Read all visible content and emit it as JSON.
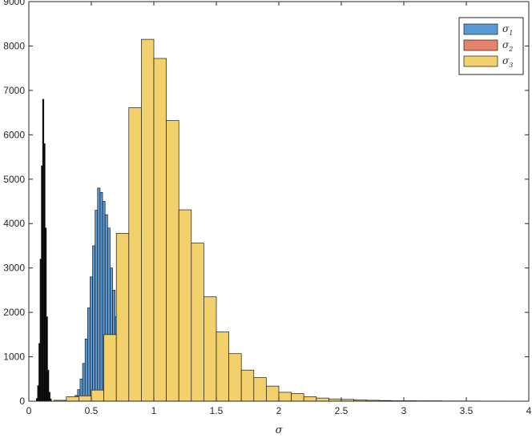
{
  "chart_data": {
    "type": "bar",
    "title": "",
    "xlabel": "σ",
    "ylabel": "",
    "xlim": [
      0,
      4
    ],
    "ylim": [
      0,
      9000
    ],
    "grid": false,
    "legend_position": "top-right",
    "xticks": [
      "0",
      "0.5",
      "1",
      "1.5",
      "2",
      "2.5",
      "3",
      "3.5",
      "4"
    ],
    "yticks": [
      "0",
      "1000",
      "2000",
      "3000",
      "4000",
      "5000",
      "6000",
      "7000",
      "8000",
      "9000"
    ],
    "series": [
      {
        "name": "σ",
        "subscript": "1",
        "color": "#5b9bd5",
        "bins": [
          {
            "x0": 0.33,
            "x1": 0.35,
            "count": 20
          },
          {
            "x0": 0.35,
            "x1": 0.37,
            "count": 60
          },
          {
            "x0": 0.37,
            "x1": 0.39,
            "count": 130
          },
          {
            "x0": 0.39,
            "x1": 0.41,
            "count": 260
          },
          {
            "x0": 0.41,
            "x1": 0.43,
            "count": 500
          },
          {
            "x0": 0.43,
            "x1": 0.45,
            "count": 850
          },
          {
            "x0": 0.45,
            "x1": 0.47,
            "count": 1400
          },
          {
            "x0": 0.47,
            "x1": 0.49,
            "count": 2100
          },
          {
            "x0": 0.49,
            "x1": 0.51,
            "count": 2800
          },
          {
            "x0": 0.51,
            "x1": 0.53,
            "count": 3500
          },
          {
            "x0": 0.53,
            "x1": 0.55,
            "count": 4300
          },
          {
            "x0": 0.55,
            "x1": 0.57,
            "count": 4800
          },
          {
            "x0": 0.57,
            "x1": 0.59,
            "count": 4700
          },
          {
            "x0": 0.59,
            "x1": 0.61,
            "count": 4500
          },
          {
            "x0": 0.61,
            "x1": 0.63,
            "count": 4200
          },
          {
            "x0": 0.63,
            "x1": 0.65,
            "count": 3900
          },
          {
            "x0": 0.65,
            "x1": 0.67,
            "count": 3000
          },
          {
            "x0": 0.67,
            "x1": 0.69,
            "count": 2500
          },
          {
            "x0": 0.69,
            "x1": 0.71,
            "count": 1900
          },
          {
            "x0": 0.71,
            "x1": 0.73,
            "count": 1500
          },
          {
            "x0": 0.73,
            "x1": 0.75,
            "count": 1200
          },
          {
            "x0": 0.75,
            "x1": 0.77,
            "count": 800
          }
        ]
      },
      {
        "name": "σ",
        "subscript": "2",
        "color": "#000000",
        "legend_color": "#e8836b",
        "bins": [
          {
            "x0": 0.06,
            "x1": 0.07,
            "count": 60
          },
          {
            "x0": 0.07,
            "x1": 0.08,
            "count": 350
          },
          {
            "x0": 0.08,
            "x1": 0.09,
            "count": 1300
          },
          {
            "x0": 0.09,
            "x1": 0.1,
            "count": 3200
          },
          {
            "x0": 0.1,
            "x1": 0.11,
            "count": 5300
          },
          {
            "x0": 0.11,
            "x1": 0.12,
            "count": 6800
          },
          {
            "x0": 0.12,
            "x1": 0.13,
            "count": 5800
          },
          {
            "x0": 0.13,
            "x1": 0.14,
            "count": 3900
          },
          {
            "x0": 0.14,
            "x1": 0.15,
            "count": 1900
          },
          {
            "x0": 0.15,
            "x1": 0.16,
            "count": 700
          },
          {
            "x0": 0.16,
            "x1": 0.17,
            "count": 200
          },
          {
            "x0": 0.17,
            "x1": 0.18,
            "count": 50
          }
        ]
      },
      {
        "name": "σ",
        "subscript": "3",
        "color": "#f2d06b",
        "bins": [
          {
            "x0": 0.2,
            "x1": 0.3,
            "count": 20
          },
          {
            "x0": 0.3,
            "x1": 0.4,
            "count": 100
          },
          {
            "x0": 0.4,
            "x1": 0.5,
            "count": 120
          },
          {
            "x0": 0.5,
            "x1": 0.6,
            "count": 250
          },
          {
            "x0": 0.6,
            "x1": 0.7,
            "count": 1500
          },
          {
            "x0": 0.7,
            "x1": 0.8,
            "count": 3780
          },
          {
            "x0": 0.8,
            "x1": 0.9,
            "count": 6610
          },
          {
            "x0": 0.9,
            "x1": 1.0,
            "count": 8150
          },
          {
            "x0": 1.0,
            "x1": 1.1,
            "count": 7720
          },
          {
            "x0": 1.1,
            "x1": 1.2,
            "count": 6320
          },
          {
            "x0": 1.2,
            "x1": 1.3,
            "count": 4310
          },
          {
            "x0": 1.3,
            "x1": 1.4,
            "count": 3560
          },
          {
            "x0": 1.4,
            "x1": 1.5,
            "count": 2350
          },
          {
            "x0": 1.5,
            "x1": 1.6,
            "count": 1560
          },
          {
            "x0": 1.6,
            "x1": 1.7,
            "count": 1070
          },
          {
            "x0": 1.7,
            "x1": 1.8,
            "count": 700
          },
          {
            "x0": 1.8,
            "x1": 1.9,
            "count": 530
          },
          {
            "x0": 1.9,
            "x1": 2.0,
            "count": 340
          },
          {
            "x0": 2.0,
            "x1": 2.1,
            "count": 200
          },
          {
            "x0": 2.1,
            "x1": 2.2,
            "count": 170
          },
          {
            "x0": 2.2,
            "x1": 2.3,
            "count": 100
          },
          {
            "x0": 2.3,
            "x1": 2.4,
            "count": 70
          },
          {
            "x0": 2.4,
            "x1": 2.5,
            "count": 50
          },
          {
            "x0": 2.5,
            "x1": 2.6,
            "count": 40
          },
          {
            "x0": 2.6,
            "x1": 2.7,
            "count": 30
          },
          {
            "x0": 2.7,
            "x1": 2.8,
            "count": 20
          },
          {
            "x0": 2.8,
            "x1": 2.9,
            "count": 15
          },
          {
            "x0": 2.9,
            "x1": 3.0,
            "count": 10
          },
          {
            "x0": 3.0,
            "x1": 3.1,
            "count": 10
          },
          {
            "x0": 3.1,
            "x1": 3.2,
            "count": 8
          },
          {
            "x0": 3.2,
            "x1": 3.3,
            "count": 8
          },
          {
            "x0": 3.3,
            "x1": 3.4,
            "count": 5
          },
          {
            "x0": 3.4,
            "x1": 3.5,
            "count": 5
          },
          {
            "x0": 3.5,
            "x1": 3.6,
            "count": 4
          },
          {
            "x0": 3.6,
            "x1": 3.7,
            "count": 3
          },
          {
            "x0": 3.7,
            "x1": 3.8,
            "count": 3
          }
        ]
      }
    ]
  }
}
